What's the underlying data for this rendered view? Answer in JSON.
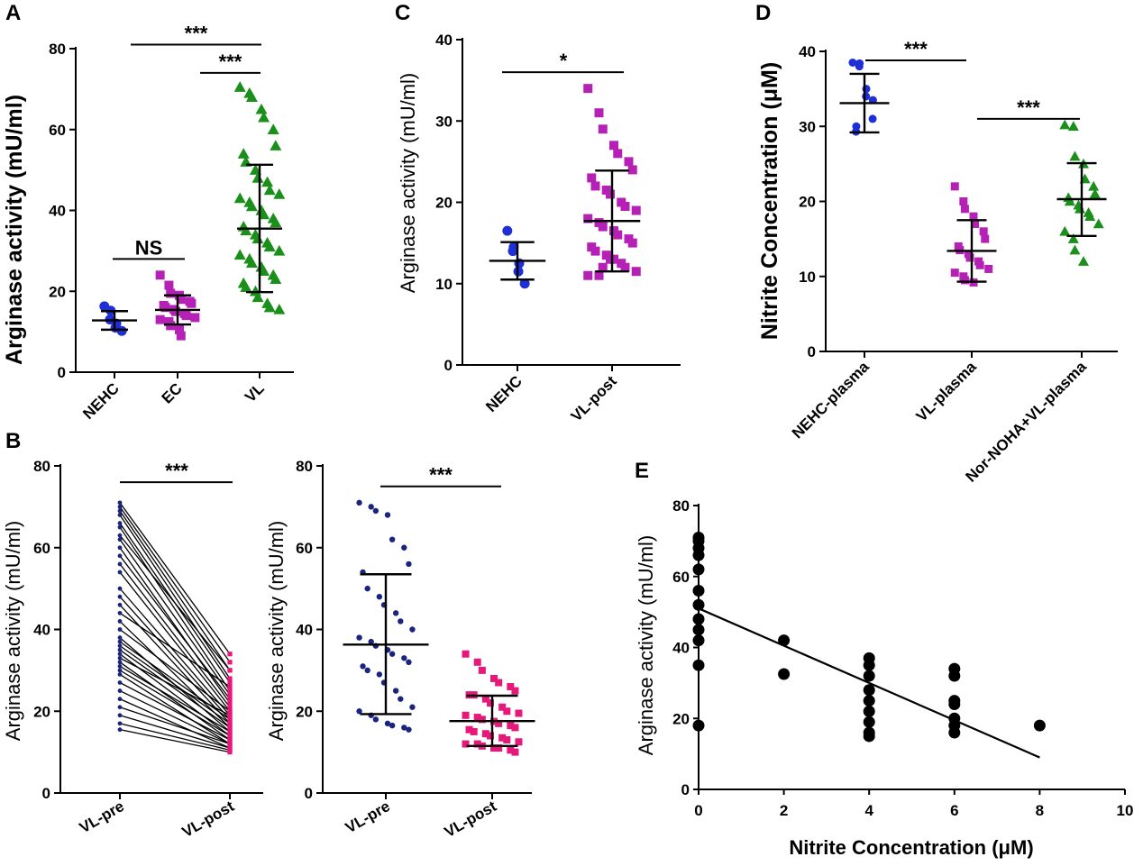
{
  "colors": {
    "blue": "#1f2fd6",
    "magenta": "#b521b5",
    "green": "#1a8f1a",
    "navy": "#1a237e",
    "pink": "#e6197a",
    "black": "#000000"
  },
  "chart_data": [
    {
      "panel": "A",
      "type": "scatter",
      "ylabel": "Arginase activity (mU/ml)",
      "ylim": [
        0,
        80
      ],
      "yticks": [
        "0",
        "20",
        "40",
        "60",
        "80"
      ],
      "categories": [
        "NEHC",
        "EC",
        "VL"
      ],
      "groups": [
        {
          "name": "NEHC",
          "color": "blue",
          "marker": "circle",
          "mean": 12.8,
          "sd_low": 10.5,
          "sd_high": 15.1,
          "values": [
            16.3,
            15.2,
            13,
            12,
            11,
            10.2
          ]
        },
        {
          "name": "EC",
          "color": "magenta",
          "marker": "square",
          "mean": 15.4,
          "sd_low": 11.8,
          "sd_high": 19.0,
          "values": [
            24,
            21.5,
            19.5,
            19,
            18,
            17.5,
            17,
            16.5,
            16,
            15.5,
            15,
            14.5,
            14,
            13.5,
            13,
            12.5,
            11.5,
            10.5,
            9
          ]
        },
        {
          "name": "VL",
          "color": "green",
          "marker": "triangle",
          "mean": 35.5,
          "sd_low": 19.8,
          "sd_high": 51.3,
          "values": [
            70.5,
            69,
            68,
            65,
            63,
            60,
            56,
            54,
            52,
            50,
            48,
            47,
            45,
            44,
            43,
            42,
            41,
            40,
            39,
            38,
            37,
            36,
            35,
            34,
            33,
            32,
            31,
            30,
            29,
            28,
            27,
            26,
            25,
            24,
            23,
            22,
            21,
            20,
            18.5,
            17,
            16,
            15.5
          ]
        }
      ],
      "comparisons": [
        {
          "label": "NS",
          "from": "NEHC",
          "to": "EC",
          "y": 28
        },
        {
          "label": "***",
          "from": "NEHC",
          "to": "VL",
          "y": 81
        },
        {
          "label": "***",
          "from": "EC",
          "to": "VL",
          "y": 74
        }
      ]
    },
    {
      "panel": "C",
      "type": "scatter",
      "ylabel": "Arginase activity (mU/ml)",
      "ylim": [
        0,
        40
      ],
      "yticks": [
        "0",
        "10",
        "20",
        "30",
        "40"
      ],
      "categories": [
        "NEHC",
        "VL-post"
      ],
      "groups": [
        {
          "name": "NEHC",
          "color": "blue",
          "marker": "circle",
          "mean": 12.8,
          "sd_low": 10.5,
          "sd_high": 15.1,
          "values": [
            16.5,
            14.5,
            14,
            12.5,
            11.5,
            10
          ]
        },
        {
          "name": "VL-post",
          "color": "magenta",
          "marker": "square",
          "mean": 17.7,
          "sd_low": 11.5,
          "sd_high": 23.9,
          "values": [
            34,
            31,
            29,
            27,
            26,
            25,
            24,
            23,
            22,
            21.5,
            21,
            20,
            19.5,
            19,
            18,
            17.5,
            17,
            16.5,
            16,
            15.5,
            15,
            14.5,
            14,
            13.5,
            13,
            12.5,
            12,
            11.5,
            11,
            11,
            12,
            13
          ]
        }
      ],
      "comparisons": [
        {
          "label": "*",
          "from": "NEHC",
          "to": "VL-post",
          "y": 36
        }
      ]
    },
    {
      "panel": "D",
      "type": "scatter",
      "ylabel": "Nitrite Concentration (μM)",
      "ylim": [
        0,
        40
      ],
      "yticks": [
        "0",
        "10",
        "20",
        "30",
        "40"
      ],
      "categories": [
        "NEHC-plasma",
        "VL-plasma",
        "Nor-NOHA+VL-plasma"
      ],
      "groups": [
        {
          "name": "NEHC-plasma",
          "color": "blue",
          "marker": "circle",
          "mean": 33.1,
          "sd_low": 29.2,
          "sd_high": 37.0,
          "values": [
            38.5,
            38.4,
            38,
            35,
            34,
            33.5,
            31,
            30,
            29.3
          ]
        },
        {
          "name": "VL-plasma",
          "color": "magenta",
          "marker": "square",
          "mean": 13.4,
          "sd_low": 9.3,
          "sd_high": 17.5,
          "values": [
            22,
            20,
            19,
            18,
            17,
            16,
            15,
            14,
            13.5,
            13,
            12.5,
            12,
            11.5,
            11,
            10.5,
            10,
            9.5,
            9.2
          ]
        },
        {
          "name": "Nor-NOHA+VL-plasma",
          "color": "green",
          "marker": "triangle",
          "mean": 20.3,
          "sd_low": 15.4,
          "sd_high": 25.1,
          "values": [
            30.2,
            30,
            26,
            25,
            23,
            22,
            21,
            20.5,
            20,
            19.5,
            19,
            18.5,
            18,
            17,
            16,
            15,
            13.5,
            12
          ]
        }
      ],
      "comparisons": [
        {
          "label": "***",
          "from": "NEHC-plasma",
          "to": "VL-plasma",
          "y": 38.8
        },
        {
          "label": "***",
          "from": "VL-plasma",
          "to": "Nor-NOHA+VL-plasma",
          "y": 31
        }
      ]
    },
    {
      "panel": "B",
      "type": "paired-line",
      "ylabel": "Arginase activity (mU/ml)",
      "ylim": [
        0,
        80
      ],
      "yticks": [
        "0",
        "20",
        "40",
        "60",
        "80"
      ],
      "categories": [
        "VL-pre",
        "VL-post"
      ],
      "pairs": [
        [
          71,
          34
        ],
        [
          70,
          32
        ],
        [
          69,
          30
        ],
        [
          68,
          28
        ],
        [
          66,
          27
        ],
        [
          65,
          25
        ],
        [
          63,
          30
        ],
        [
          62,
          24
        ],
        [
          60,
          22
        ],
        [
          58,
          23
        ],
        [
          56,
          21
        ],
        [
          54,
          20
        ],
        [
          50,
          19
        ],
        [
          48,
          18
        ],
        [
          46,
          17
        ],
        [
          44,
          26
        ],
        [
          42,
          16
        ],
        [
          40,
          20
        ],
        [
          38,
          15
        ],
        [
          37,
          18
        ],
        [
          36,
          17
        ],
        [
          35,
          16
        ],
        [
          34,
          14
        ],
        [
          33,
          19
        ],
        [
          32,
          13
        ],
        [
          31,
          15
        ],
        [
          30,
          14
        ],
        [
          29,
          12
        ],
        [
          27,
          13
        ],
        [
          25,
          12
        ],
        [
          23,
          11
        ],
        [
          21,
          12
        ],
        [
          19,
          11
        ],
        [
          17,
          10.5
        ],
        [
          15.5,
          10
        ]
      ],
      "comparisons": [
        {
          "label": "***",
          "from": "VL-pre",
          "to": "VL-post",
          "y": 76
        }
      ]
    },
    {
      "panel": "B2",
      "type": "scatter",
      "ylabel": "Arginase activity (mU/ml)",
      "ylim": [
        0,
        80
      ],
      "yticks": [
        "0",
        "20",
        "40",
        "60",
        "80"
      ],
      "categories": [
        "VL-pre",
        "VL-post"
      ],
      "groups": [
        {
          "name": "VL-pre",
          "color": "navy",
          "marker": "circle",
          "mean": 36.3,
          "sd_low": 19.3,
          "sd_high": 53.5,
          "values": [
            71,
            70,
            69,
            68,
            62,
            60,
            56,
            54,
            50,
            48,
            46,
            44,
            42,
            40,
            38,
            37,
            36,
            35,
            34,
            33,
            32,
            31,
            30,
            29,
            27,
            25,
            23,
            21,
            20,
            19,
            18,
            17,
            16.5,
            16,
            15.5
          ]
        },
        {
          "name": "VL-post",
          "color": "pink",
          "marker": "square",
          "mean": 17.6,
          "sd_low": 11.5,
          "sd_high": 23.8,
          "values": [
            34,
            32,
            30,
            28,
            27,
            26,
            25,
            24,
            24,
            23,
            22,
            21,
            20,
            19.5,
            19,
            18.5,
            18,
            17.5,
            17,
            16.5,
            16,
            15.5,
            15,
            14.5,
            14,
            13.5,
            13,
            12.5,
            12,
            12,
            11.5,
            11,
            11,
            10.5,
            10
          ]
        }
      ],
      "comparisons": [
        {
          "label": "***",
          "from": "VL-pre",
          "to": "VL-post",
          "y": 75
        }
      ]
    },
    {
      "panel": "E",
      "type": "scatter-regression",
      "xlabel": "Nitrite Concentration (μM)",
      "ylabel": "Arginase activity (mU/ml)",
      "xlim": [
        0,
        10
      ],
      "ylim": [
        0,
        80
      ],
      "xticks": [
        "0",
        "2",
        "4",
        "6",
        "8",
        "10"
      ],
      "yticks": [
        "0",
        "20",
        "40",
        "60",
        "80"
      ],
      "points": [
        [
          0,
          71
        ],
        [
          0,
          70
        ],
        [
          0,
          68
        ],
        [
          0,
          66
        ],
        [
          0,
          62
        ],
        [
          0,
          56
        ],
        [
          0,
          52
        ],
        [
          0,
          48
        ],
        [
          0,
          45
        ],
        [
          0,
          42
        ],
        [
          0,
          35
        ],
        [
          0,
          18
        ],
        [
          2,
          42
        ],
        [
          2,
          32.5
        ],
        [
          4,
          37
        ],
        [
          4,
          35
        ],
        [
          4,
          32
        ],
        [
          4,
          28
        ],
        [
          4,
          25
        ],
        [
          4,
          22
        ],
        [
          4,
          19
        ],
        [
          4,
          16
        ],
        [
          4,
          15
        ],
        [
          6,
          34
        ],
        [
          6,
          32
        ],
        [
          6,
          25
        ],
        [
          6,
          24
        ],
        [
          6,
          20
        ],
        [
          6,
          18
        ],
        [
          6,
          16
        ],
        [
          8,
          18
        ]
      ],
      "regression": {
        "x0": 0,
        "y0": 51,
        "x1": 8,
        "y1": 9
      }
    }
  ],
  "panels": [
    {
      "letter": "A",
      "title_label": "A"
    },
    {
      "letter": "B",
      "title_label": "B"
    },
    {
      "letter": "C",
      "title_label": "C"
    },
    {
      "letter": "D",
      "title_label": "D"
    },
    {
      "letter": "E",
      "title_label": "E"
    }
  ]
}
